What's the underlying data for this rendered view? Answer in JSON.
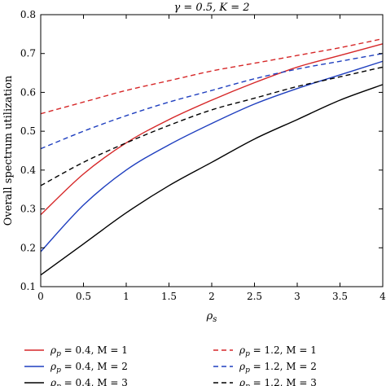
{
  "chart_data": {
    "type": "line",
    "title": "γ = 0.5, K = 2",
    "xlabel": "ρ_s",
    "ylabel": "Overall spectrum utilization",
    "xlim": [
      0,
      4
    ],
    "ylim": [
      0.1,
      0.8
    ],
    "xticks": [
      "0",
      "0.5",
      "1",
      "1.5",
      "2",
      "2.5",
      "3",
      "3.5",
      "4"
    ],
    "yticks": [
      "0.1",
      "0.2",
      "0.3",
      "0.4",
      "0.5",
      "0.6",
      "0.7",
      "0.8"
    ],
    "grid": false,
    "legend_position": "bottom",
    "x": [
      0,
      0.5,
      1,
      1.5,
      2,
      2.5,
      3,
      3.5,
      4
    ],
    "series": [
      {
        "name": "ρ_p = 0.4, M = 1",
        "label_rho": "ρ",
        "label_sub": "p",
        "label_rest": " = 0.4, M = 1",
        "color": "#d62728",
        "dash": "solid",
        "values": [
          0.285,
          0.39,
          0.47,
          0.53,
          0.58,
          0.625,
          0.665,
          0.695,
          0.725
        ]
      },
      {
        "name": "ρ_p = 0.4, M = 2",
        "label_rho": "ρ",
        "label_sub": "p",
        "label_rest": " = 0.4, M = 2",
        "color": "#1f3fbf",
        "dash": "solid",
        "values": [
          0.19,
          0.31,
          0.4,
          0.465,
          0.52,
          0.57,
          0.61,
          0.645,
          0.68
        ]
      },
      {
        "name": "ρ_p = 0.4, M = 3",
        "label_rho": "ρ",
        "label_sub": "p",
        "label_rest": " = 0.4, M = 3",
        "color": "#000000",
        "dash": "solid",
        "values": [
          0.13,
          0.21,
          0.29,
          0.36,
          0.42,
          0.48,
          0.53,
          0.58,
          0.62
        ]
      },
      {
        "name": "ρ_p = 1.2, M = 1",
        "label_rho": "ρ",
        "label_sub": "p",
        "label_rest": " = 1.2, M = 1",
        "color": "#d62728",
        "dash": "dashed",
        "values": [
          0.545,
          0.575,
          0.605,
          0.63,
          0.655,
          0.675,
          0.695,
          0.715,
          0.738
        ]
      },
      {
        "name": "ρ_p = 1.2, M = 2",
        "label_rho": "ρ",
        "label_sub": "p",
        "label_rest": " = 1.2, M = 2",
        "color": "#1f3fbf",
        "dash": "dashed",
        "values": [
          0.455,
          0.5,
          0.54,
          0.575,
          0.605,
          0.635,
          0.66,
          0.68,
          0.7
        ]
      },
      {
        "name": "ρ_p = 1.2, M = 3",
        "label_rho": "ρ",
        "label_sub": "p",
        "label_rest": " = 1.2, M = 3",
        "color": "#000000",
        "dash": "dashed",
        "values": [
          0.36,
          0.42,
          0.47,
          0.515,
          0.555,
          0.585,
          0.615,
          0.64,
          0.665
        ]
      }
    ]
  }
}
